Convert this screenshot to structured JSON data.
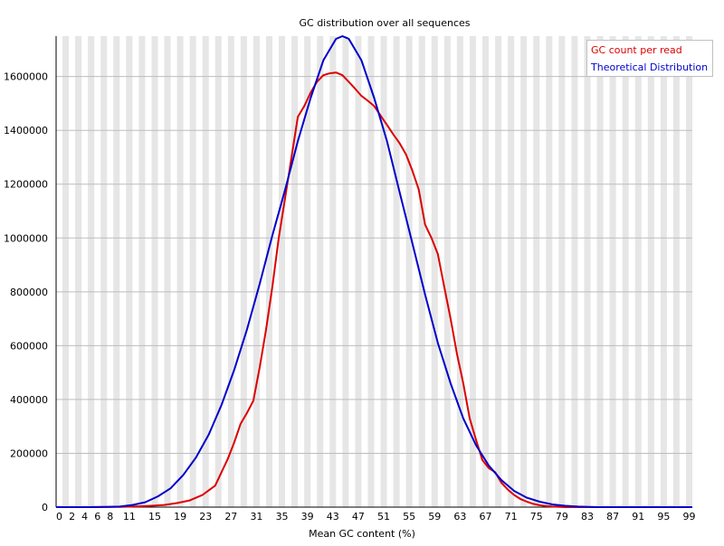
{
  "chart_data": {
    "type": "line",
    "title": "GC distribution over all sequences",
    "xlabel": "Mean GC content (%)",
    "ylabel": "",
    "xlim": [
      0,
      100
    ],
    "ylim": [
      0,
      1750000
    ],
    "x_ticks": [
      "0",
      "2",
      "4",
      "6",
      "8",
      "11",
      "15",
      "19",
      "23",
      "27",
      "31",
      "35",
      "39",
      "43",
      "47",
      "51",
      "55",
      "59",
      "63",
      "67",
      "71",
      "75",
      "79",
      "83",
      "87",
      "91",
      "95",
      "99"
    ],
    "y_ticks": [
      0,
      200000,
      400000,
      600000,
      800000,
      1000000,
      1200000,
      1400000,
      1600000
    ],
    "grid": "horizontal lines; alternating vertical stripes",
    "legend_position": "top-right",
    "colors": {
      "gc_count": "#dd0000",
      "theoretical": "#0000cc",
      "stripe": "#e6e6e6",
      "grid": "#bdbdbd"
    },
    "series": [
      {
        "name": "GC count per read",
        "color": "#dd0000",
        "x": [
          0,
          5,
          10,
          13,
          15,
          17,
          19,
          21,
          23,
          25,
          27,
          28,
          29,
          30,
          31,
          32,
          33,
          34,
          35,
          36,
          37,
          38,
          39,
          40,
          41,
          42,
          43,
          44,
          45,
          46,
          47,
          48,
          49,
          50,
          51,
          52,
          53,
          54,
          55,
          56,
          57,
          58,
          59,
          60,
          61,
          62,
          63,
          64,
          65,
          66,
          67,
          68,
          69,
          70,
          71,
          72,
          73,
          74,
          75,
          76,
          77,
          78,
          80,
          85,
          90,
          95,
          100
        ],
        "values": [
          0,
          0,
          1000,
          3000,
          5000,
          8000,
          15000,
          25000,
          45000,
          80000,
          180000,
          240000,
          310000,
          350000,
          395000,
          520000,
          660000,
          820000,
          1000000,
          1150000,
          1300000,
          1450000,
          1490000,
          1540000,
          1580000,
          1605000,
          1612000,
          1615000,
          1605000,
          1580000,
          1555000,
          1528000,
          1510000,
          1490000,
          1455000,
          1420000,
          1385000,
          1352000,
          1310000,
          1250000,
          1180000,
          1050000,
          1000000,
          940000,
          820000,
          700000,
          570000,
          460000,
          330000,
          250000,
          175000,
          145000,
          130000,
          90000,
          65000,
          45000,
          30000,
          20000,
          12000,
          7000,
          4000,
          2000,
          0,
          0,
          0,
          0,
          0
        ]
      },
      {
        "name": "Theoretical Distribution",
        "color": "#0000cc",
        "x": [
          0,
          5,
          8,
          10,
          12,
          14,
          16,
          18,
          20,
          22,
          24,
          26,
          28,
          30,
          32,
          34,
          36,
          38,
          40,
          42,
          43,
          44,
          45,
          46,
          48,
          50,
          52,
          54,
          56,
          58,
          60,
          62,
          64,
          66,
          68,
          70,
          72,
          74,
          76,
          78,
          80,
          82,
          85,
          90,
          95,
          100
        ],
        "values": [
          0,
          0,
          1000,
          2000,
          8000,
          18000,
          40000,
          70000,
          120000,
          185000,
          270000,
          380000,
          510000,
          660000,
          830000,
          1010000,
          1180000,
          1360000,
          1520000,
          1660000,
          1700000,
          1740000,
          1750000,
          1740000,
          1660000,
          1520000,
          1360000,
          1170000,
          980000,
          790000,
          610000,
          460000,
          330000,
          230000,
          155000,
          100000,
          60000,
          35000,
          20000,
          10000,
          5000,
          2000,
          0,
          0,
          0,
          0
        ]
      }
    ]
  }
}
